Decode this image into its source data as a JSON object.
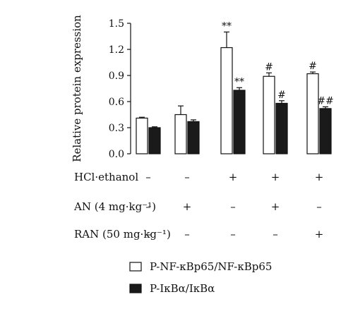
{
  "chart_data": {
    "type": "bar",
    "ylabel": "Relative protein expression",
    "ylim": [
      0,
      1.5
    ],
    "yticks": [
      "0.0",
      "0.3",
      "0.6",
      "0.9",
      "1.2",
      "1.5"
    ],
    "series": [
      {
        "name": "P-NF-κBp65/NF-κBp65",
        "color": "#ffffff",
        "values": [
          0.41,
          0.45,
          1.22,
          0.89,
          0.92
        ],
        "errors": [
          0.01,
          0.1,
          0.18,
          0.04,
          0.02
        ],
        "annotations": [
          "",
          "",
          "**",
          "#",
          "#"
        ]
      },
      {
        "name": "P-IκBα/IκBα",
        "color": "#1a1a1a",
        "values": [
          0.3,
          0.37,
          0.73,
          0.58,
          0.52
        ],
        "errors": [
          0.01,
          0.02,
          0.03,
          0.03,
          0.02
        ],
        "annotations": [
          "",
          "",
          "**",
          "#",
          "##"
        ]
      }
    ],
    "treatments": [
      {
        "label": "HCl·ethanol",
        "values": [
          "–",
          "–",
          "+",
          "+",
          "+"
        ]
      },
      {
        "label": "AN (4 mg·kg⁻¹)",
        "values": [
          "–",
          "+",
          "–",
          "+",
          "–"
        ]
      },
      {
        "label": "RAN (50 mg·kg⁻¹)",
        "values": [
          "–",
          "–",
          "–",
          "–",
          "+"
        ]
      }
    ],
    "legend": "bottom"
  }
}
